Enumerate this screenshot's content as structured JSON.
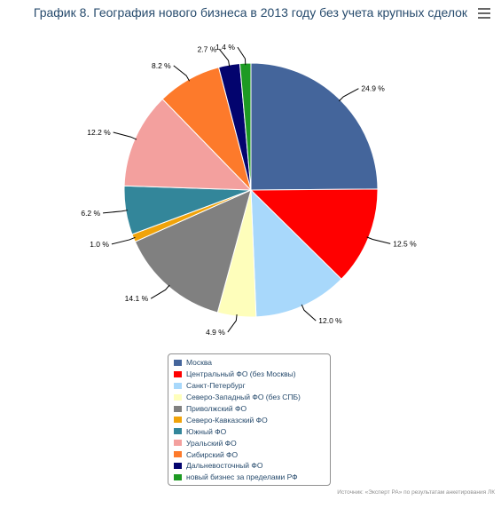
{
  "title": "График 8. География нового бизнеса в 2013 году без учета крупных сделок",
  "menu": {
    "icon": "hamburger-menu-icon"
  },
  "credits": "Источник: «Эксперт РА» по результатам анкетирования ЛК",
  "chart_data": {
    "type": "pie",
    "unit": "%",
    "legend_position": "bottom",
    "slices": [
      {
        "name": "Москва",
        "value": 24.9,
        "label": "24.9 %",
        "color": "#44659b"
      },
      {
        "name": "Центральный ФО (без Москвы)",
        "value": 12.5,
        "label": "12.5 %",
        "color": "#ff0000"
      },
      {
        "name": "Санкт-Петербург",
        "value": 12.0,
        "label": "12.0 %",
        "color": "#a8d8fb"
      },
      {
        "name": "Северо-Западный ФО (без СПБ)",
        "value": 4.9,
        "label": "4.9 %",
        "color": "#fefebb"
      },
      {
        "name": "Приволжский ФО",
        "value": 14.1,
        "label": "14.1 %",
        "color": "#808080"
      },
      {
        "name": "Северо-Кавказский ФО",
        "value": 1.0,
        "label": "1.0 %",
        "color": "#f0a30a"
      },
      {
        "name": "Южный ФО",
        "value": 6.2,
        "label": "6.2 %",
        "color": "#33869a"
      },
      {
        "name": "Уральский ФО",
        "value": 12.2,
        "label": "12.2 %",
        "color": "#f3a09e"
      },
      {
        "name": "Сибирский ФО",
        "value": 8.2,
        "label": "8.2 %",
        "color": "#fd7a2b"
      },
      {
        "name": "Дальневосточный ФО",
        "value": 2.7,
        "label": "2.7 %",
        "color": "#03046e"
      },
      {
        "name": "новый бизнес за пределами РФ",
        "value": 1.4,
        "label": "1.4 %",
        "color": "#1d9a23"
      }
    ]
  }
}
